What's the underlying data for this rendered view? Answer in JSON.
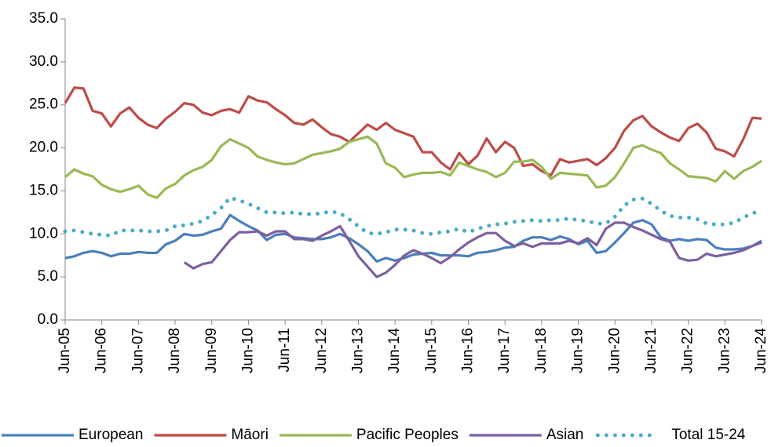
{
  "chart_data": {
    "type": "line",
    "categories": [
      "Jun-05",
      null,
      null,
      null,
      "Jun-06",
      null,
      null,
      null,
      "Jun-07",
      null,
      null,
      null,
      "Jun-08",
      null,
      null,
      null,
      "Jun-09",
      null,
      null,
      null,
      "Jun-10",
      null,
      null,
      null,
      "Jun-11",
      null,
      null,
      null,
      "Jun-12",
      null,
      null,
      null,
      "Jun-13",
      null,
      null,
      null,
      "Jun-14",
      null,
      null,
      null,
      "Jun-15",
      null,
      null,
      null,
      "Jun-16",
      null,
      null,
      null,
      "Jun-17",
      null,
      null,
      null,
      "Jun-18",
      null,
      null,
      null,
      "Jun-19",
      null,
      null,
      null,
      "Jun-20",
      null,
      null,
      null,
      "Jun-21",
      null,
      null,
      null,
      "Jun-22",
      null,
      null,
      null,
      "Jun-23",
      null,
      null,
      null,
      "Jun-24"
    ],
    "series": [
      {
        "name": "European",
        "color": "#4a7ebb",
        "values": [
          7.2,
          7.4,
          7.8,
          8.0,
          7.8,
          7.4,
          7.7,
          7.7,
          7.9,
          7.8,
          7.8,
          8.8,
          9.2,
          10.0,
          9.8,
          9.9,
          10.3,
          10.6,
          12.2,
          11.5,
          10.9,
          10.4,
          9.3,
          9.9,
          10.0,
          9.6,
          9.5,
          9.4,
          9.4,
          9.6,
          10.0,
          9.5,
          8.8,
          8.0,
          6.8,
          7.2,
          6.9,
          7.2,
          7.6,
          7.7,
          7.8,
          7.5,
          7.5,
          7.5,
          7.4,
          7.8,
          7.9,
          8.1,
          8.4,
          8.5,
          9.2,
          9.6,
          9.6,
          9.3,
          9.7,
          9.4,
          8.8,
          9.2,
          7.8,
          8.0,
          9.0,
          10.1,
          11.3,
          11.6,
          11.1,
          9.6,
          9.2,
          9.4,
          9.2,
          9.4,
          9.3,
          8.4,
          8.2,
          8.2,
          8.3,
          8.6,
          9.2
        ]
      },
      {
        "name": "Māori",
        "color": "#be4b48",
        "values": [
          25.2,
          27.0,
          26.9,
          24.3,
          24.0,
          22.5,
          24.0,
          24.7,
          23.5,
          22.7,
          22.3,
          23.4,
          24.2,
          25.2,
          25.0,
          24.1,
          23.8,
          24.3,
          24.5,
          24.1,
          26.0,
          25.5,
          25.3,
          24.5,
          23.8,
          22.9,
          22.7,
          23.3,
          22.4,
          21.6,
          21.3,
          20.7,
          21.7,
          22.7,
          22.1,
          22.9,
          22.1,
          21.7,
          21.3,
          19.5,
          19.5,
          18.3,
          17.5,
          19.4,
          18.1,
          19.1,
          21.1,
          19.5,
          20.7,
          20.0,
          17.9,
          18.1,
          17.3,
          16.8,
          18.7,
          18.3,
          18.5,
          18.7,
          18.0,
          18.8,
          20.0,
          22.0,
          23.2,
          23.7,
          22.5,
          21.8,
          21.2,
          20.8,
          22.3,
          22.8,
          21.8,
          19.9,
          19.6,
          19.0,
          21.0,
          23.5,
          23.4
        ]
      },
      {
        "name": "Pacific Peoples",
        "color": "#98b954",
        "values": [
          16.6,
          17.5,
          17.0,
          16.7,
          15.7,
          15.2,
          14.9,
          15.2,
          15.6,
          14.6,
          14.2,
          15.3,
          15.8,
          16.8,
          17.4,
          17.8,
          18.6,
          20.2,
          21.0,
          20.5,
          20.0,
          19.0,
          18.6,
          18.3,
          18.1,
          18.2,
          18.7,
          19.2,
          19.4,
          19.6,
          19.9,
          20.7,
          21.0,
          21.3,
          20.5,
          18.2,
          17.7,
          16.6,
          16.9,
          17.1,
          17.1,
          17.2,
          16.8,
          18.3,
          17.9,
          17.5,
          17.2,
          16.6,
          17.1,
          18.4,
          18.4,
          18.6,
          17.8,
          16.4,
          17.1,
          17.0,
          16.9,
          16.8,
          15.4,
          15.6,
          16.6,
          18.2,
          20.0,
          20.3,
          19.8,
          19.4,
          18.2,
          17.5,
          16.7,
          16.6,
          16.5,
          16.1,
          17.3,
          16.4,
          17.3,
          17.8,
          18.5
        ]
      },
      {
        "name": "Asian",
        "color": "#7d5fa0",
        "values": [
          null,
          null,
          null,
          null,
          null,
          null,
          null,
          null,
          null,
          null,
          null,
          null,
          null,
          6.7,
          6.0,
          6.5,
          6.7,
          8.0,
          9.3,
          10.2,
          10.2,
          10.3,
          9.8,
          10.3,
          10.3,
          9.4,
          9.4,
          9.2,
          9.8,
          10.3,
          10.9,
          9.2,
          7.4,
          6.2,
          5.0,
          5.5,
          6.4,
          7.5,
          8.1,
          7.7,
          7.2,
          6.6,
          7.3,
          8.2,
          9.0,
          9.6,
          10.1,
          10.1,
          9.2,
          8.6,
          8.9,
          8.5,
          8.9,
          8.9,
          8.9,
          9.2,
          8.9,
          9.5,
          8.7,
          10.6,
          11.3,
          11.3,
          10.8,
          10.4,
          9.9,
          9.4,
          9.1,
          7.2,
          6.9,
          7.0,
          7.7,
          7.4,
          7.6,
          7.8,
          8.1,
          8.6,
          9.0
        ]
      },
      {
        "name": "Total 15-24",
        "color": "#4bacc6",
        "dotted": true,
        "values": [
          10.3,
          10.4,
          10.2,
          10.0,
          9.9,
          9.8,
          10.4,
          10.4,
          10.4,
          10.3,
          10.3,
          10.4,
          10.9,
          11.0,
          11.2,
          11.5,
          12.2,
          13.0,
          14.2,
          13.9,
          13.5,
          13.0,
          12.5,
          12.5,
          12.4,
          12.5,
          12.3,
          12.3,
          12.4,
          12.6,
          12.4,
          11.7,
          10.9,
          10.1,
          10.0,
          10.2,
          10.5,
          10.5,
          10.4,
          10.1,
          10.0,
          10.2,
          10.3,
          10.6,
          10.2,
          10.6,
          10.9,
          11.1,
          11.2,
          11.4,
          11.5,
          11.6,
          11.5,
          11.6,
          11.6,
          11.8,
          11.6,
          11.5,
          11.2,
          11.2,
          12.0,
          13.3,
          14.0,
          14.1,
          13.5,
          12.7,
          12.1,
          11.9,
          11.9,
          11.7,
          11.2,
          11.1,
          11.1,
          11.3,
          11.9,
          12.4,
          12.7
        ]
      }
    ],
    "ylim": [
      0,
      35
    ],
    "yticks": [
      {
        "value": 0,
        "label": "0.0"
      },
      {
        "value": 5,
        "label": "5.0"
      },
      {
        "value": 10,
        "label": "10.0"
      },
      {
        "value": 15,
        "label": "15.0"
      },
      {
        "value": 20,
        "label": "20.0"
      },
      {
        "value": 25,
        "label": "25.0"
      },
      {
        "value": 30,
        "label": "30.0"
      },
      {
        "value": 35,
        "label": "35.0"
      }
    ],
    "grid": false,
    "legend": "bottom"
  }
}
